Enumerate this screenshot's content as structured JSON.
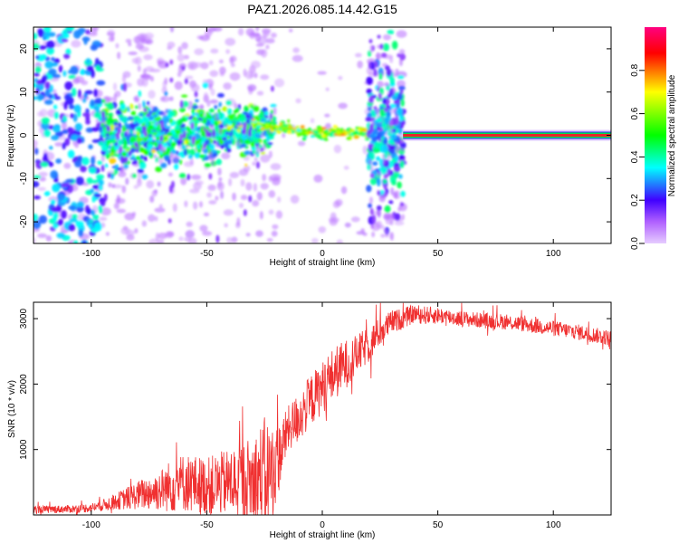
{
  "title": "PAZ1.2026.085.14.42.G15",
  "colors": {
    "snr_line": "#f03030",
    "spectrum_main": "#7a1ff0",
    "spectrum_faint": "#d9b8ff",
    "ridge": "#e8262a",
    "ridge_edge": "#00e050"
  },
  "chart_data": [
    {
      "type": "heatmap",
      "name": "spectrogram",
      "xlabel": "Height of straight line (km)",
      "ylabel": "Frequency (Hz)",
      "xlim": [
        -125,
        125
      ],
      "ylim": [
        -25,
        25
      ],
      "xticks": [
        {
          "value": -100,
          "label": "-100"
        },
        {
          "value": -50,
          "label": "-50"
        },
        {
          "value": 0,
          "label": "0"
        },
        {
          "value": 50,
          "label": "50"
        },
        {
          "value": 100,
          "label": "100"
        }
      ],
      "yticks": [
        {
          "value": -20,
          "label": "-20"
        },
        {
          "value": -10,
          "label": "-10"
        },
        {
          "value": 0,
          "label": "0"
        },
        {
          "value": 10,
          "label": "10"
        },
        {
          "value": 20,
          "label": "20"
        }
      ],
      "colorbar": {
        "label": "Normalized spectral amplitude",
        "range": [
          0,
          1
        ],
        "ticks": [
          {
            "value": 0.0,
            "label": "0.0"
          },
          {
            "value": 0.2,
            "label": "0.2"
          },
          {
            "value": 0.4,
            "label": "0.4"
          },
          {
            "value": 0.6,
            "label": "0.6"
          },
          {
            "value": 0.8,
            "label": "0.8"
          }
        ],
        "stops": [
          "#e6ccff",
          "#8000ff",
          "#0000ff",
          "#00ffff",
          "#00ff00",
          "#ffff00",
          "#ff0000",
          "#ff0080"
        ]
      },
      "ridge": {
        "x_start": 35,
        "x_end": 125,
        "frequency": 0,
        "amplitude": 0.9
      },
      "regions": [
        {
          "x_range": [
            -125,
            -95
          ],
          "freq_spread": 25,
          "amplitude": 0.35,
          "note": "noisy scatter"
        },
        {
          "x_range": [
            -95,
            -20
          ],
          "freq_spread": 8,
          "amplitude": 0.45,
          "note": "main cluster"
        },
        {
          "x_range": [
            -20,
            20
          ],
          "freq_spread": 2,
          "amplitude": 0.75,
          "note": "converging ridge"
        },
        {
          "x_range": [
            20,
            35
          ],
          "freq_spread": 22,
          "amplitude": 0.3,
          "note": "vertical spread"
        }
      ]
    },
    {
      "type": "line",
      "name": "snr",
      "xlabel": "Height of straight line (km)",
      "ylabel": "SNR (10 * v/v)",
      "xlim": [
        -125,
        125
      ],
      "ylim": [
        0,
        3250
      ],
      "xticks": [
        {
          "value": -100,
          "label": "-100"
        },
        {
          "value": -50,
          "label": "-50"
        },
        {
          "value": 0,
          "label": "0"
        },
        {
          "value": 50,
          "label": "50"
        },
        {
          "value": 100,
          "label": "100"
        }
      ],
      "yticks": [
        {
          "value": 1000,
          "label": "1000"
        },
        {
          "value": 2000,
          "label": "2000"
        },
        {
          "value": 3000,
          "label": "3000"
        }
      ],
      "series": [
        {
          "name": "SNR",
          "envelope": {
            "x": [
              -125,
              -110,
              -100,
              -95,
              -90,
              -80,
              -70,
              -65,
              -60,
              -50,
              -40,
              -30,
              -25,
              -20,
              -15,
              -10,
              -5,
              0,
              5,
              10,
              15,
              20,
              25,
              30,
              35,
              40,
              45,
              50,
              60,
              70,
              80,
              90,
              100,
              110,
              125
            ],
            "mean": [
              80,
              90,
              110,
              150,
              200,
              300,
              380,
              450,
              500,
              430,
              500,
              520,
              600,
              750,
              1300,
              1500,
              1750,
              1950,
              2150,
              2300,
              2450,
              2600,
              2800,
              2950,
              3000,
              3080,
              3050,
              3050,
              3000,
              2970,
              2950,
              2900,
              2850,
              2800,
              2700
            ],
            "noise": [
              60,
              60,
              70,
              90,
              120,
              220,
              320,
              420,
              450,
              450,
              520,
              700,
              900,
              600,
              350,
              400,
              400,
              400,
              420,
              380,
              300,
              280,
              220,
              180,
              160,
              140,
              140,
              130,
              120,
              120,
              120,
              120,
              120,
              120,
              120
            ]
          }
        }
      ]
    }
  ]
}
